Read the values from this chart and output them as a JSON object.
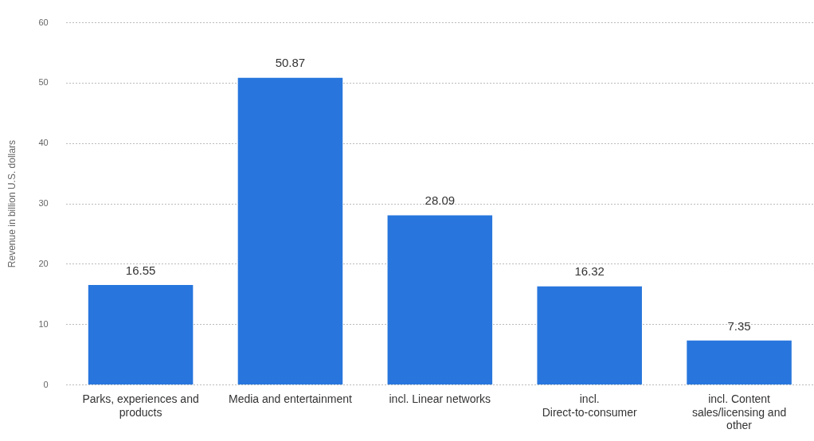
{
  "chart_data": {
    "type": "bar",
    "ylabel": "Revenue in billion U.S. dollars",
    "categories": [
      "Parks, experiences and products",
      "Media and entertainment",
      "incl. Linear networks",
      "incl. Direct-to-consumer",
      "incl. Content sales/licensing and other"
    ],
    "values": [
      16.55,
      50.87,
      28.09,
      16.32,
      7.35
    ],
    "color": "#2876dd",
    "ylim": [
      0,
      60
    ],
    "yticks": [
      0,
      10,
      20,
      30,
      40,
      50,
      60
    ],
    "grid": "y",
    "data_labels": true,
    "legend": false
  }
}
